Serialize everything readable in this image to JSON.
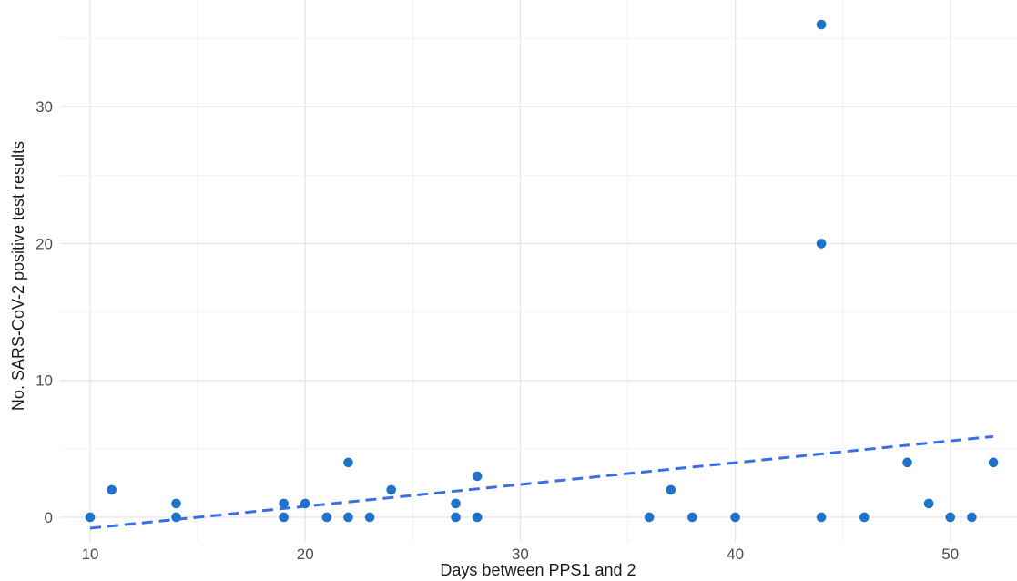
{
  "chart_data": {
    "type": "scatter",
    "xlabel": "Days between PPS1 and 2",
    "ylabel": "No. SARS-CoV-2 positive test results",
    "xlim": [
      8.6,
      53.1
    ],
    "ylim": [
      -1.8,
      37.8
    ],
    "x_ticks": [
      10,
      20,
      30,
      40,
      50
    ],
    "x_tick_labels": [
      "10",
      "20",
      "30",
      "40",
      "50"
    ],
    "y_ticks": [
      0,
      10,
      20,
      30
    ],
    "y_tick_labels": [
      "0",
      "10",
      "20",
      "30"
    ],
    "grid": true,
    "legend": "none",
    "point_color": "#1f73c9",
    "trend_color": "#3a6ee8",
    "points": [
      {
        "x": 10,
        "y": 0
      },
      {
        "x": 11,
        "y": 2
      },
      {
        "x": 14,
        "y": 1
      },
      {
        "x": 14,
        "y": 0
      },
      {
        "x": 19,
        "y": 1
      },
      {
        "x": 19,
        "y": 0
      },
      {
        "x": 20,
        "y": 1
      },
      {
        "x": 21,
        "y": 0
      },
      {
        "x": 22,
        "y": 4
      },
      {
        "x": 22,
        "y": 0
      },
      {
        "x": 23,
        "y": 0
      },
      {
        "x": 24,
        "y": 2
      },
      {
        "x": 27,
        "y": 1
      },
      {
        "x": 27,
        "y": 0
      },
      {
        "x": 28,
        "y": 3
      },
      {
        "x": 28,
        "y": 0
      },
      {
        "x": 36,
        "y": 0
      },
      {
        "x": 37,
        "y": 2
      },
      {
        "x": 38,
        "y": 0
      },
      {
        "x": 40,
        "y": 0
      },
      {
        "x": 44,
        "y": 36
      },
      {
        "x": 44,
        "y": 20
      },
      {
        "x": 44,
        "y": 0
      },
      {
        "x": 46,
        "y": 0
      },
      {
        "x": 48,
        "y": 4
      },
      {
        "x": 49,
        "y": 1
      },
      {
        "x": 50,
        "y": 0
      },
      {
        "x": 51,
        "y": 0
      },
      {
        "x": 52,
        "y": 4
      }
    ],
    "trend_line": {
      "style": "dashed",
      "x": [
        10,
        52
      ],
      "y": [
        -0.8,
        5.9
      ]
    }
  }
}
